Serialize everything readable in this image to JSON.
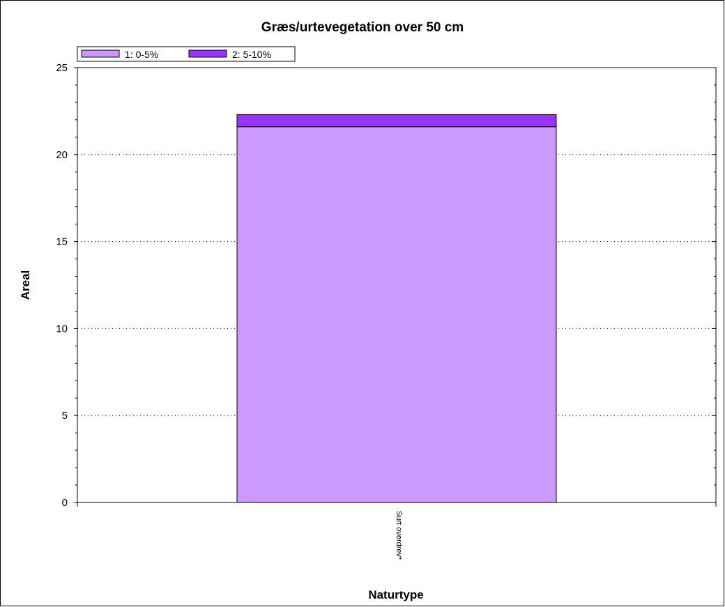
{
  "chart_data": {
    "type": "bar",
    "stacked": true,
    "title": "Græs/urtevegetation over 50 cm",
    "xlabel": "Naturtype",
    "ylabel": "Areal",
    "categories": [
      "Surt overdrev*"
    ],
    "series": [
      {
        "name": "1: 0-5%",
        "values": [
          21.6
        ],
        "color": "#cc99ff"
      },
      {
        "name": "2: 5-10%",
        "values": [
          0.7
        ],
        "color": "#9933ff"
      }
    ],
    "ylim": [
      0,
      25
    ],
    "yticks": [
      0,
      5,
      10,
      15,
      20,
      25
    ],
    "ytick_labels": [
      "0",
      "5",
      "10",
      "15",
      "20",
      "25"
    ],
    "grid": "horizontal dotted",
    "legend_position": "top-left"
  }
}
